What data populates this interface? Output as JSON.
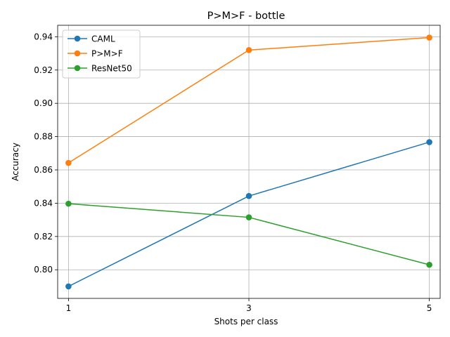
{
  "chart_data": {
    "type": "line",
    "title": "P>M>F - bottle",
    "xlabel": "Shots per class",
    "ylabel": "Accuracy",
    "x": [
      1,
      3,
      5
    ],
    "x_tick_labels": [
      "1",
      "3",
      "5"
    ],
    "xlim": [
      0.88,
      5.12
    ],
    "ylim": [
      0.7828,
      0.9469
    ],
    "y_ticks": [
      0.8,
      0.82,
      0.84,
      0.86,
      0.88,
      0.9,
      0.92,
      0.94
    ],
    "y_tick_labels": [
      "0.80",
      "0.82",
      "0.84",
      "0.86",
      "0.88",
      "0.90",
      "0.92",
      "0.94"
    ],
    "grid": true,
    "legend_position": "upper-left",
    "series": [
      {
        "name": "CAML",
        "color": "#1f77b4",
        "values": [
          0.79,
          0.8443,
          0.8767
        ]
      },
      {
        "name": "P>M>F",
        "color": "#ff7f0e",
        "values": [
          0.8642,
          0.932,
          0.9395
        ]
      },
      {
        "name": "ResNet50",
        "color": "#2ca02c",
        "values": [
          0.8397,
          0.8315,
          0.803
        ]
      }
    ]
  }
}
